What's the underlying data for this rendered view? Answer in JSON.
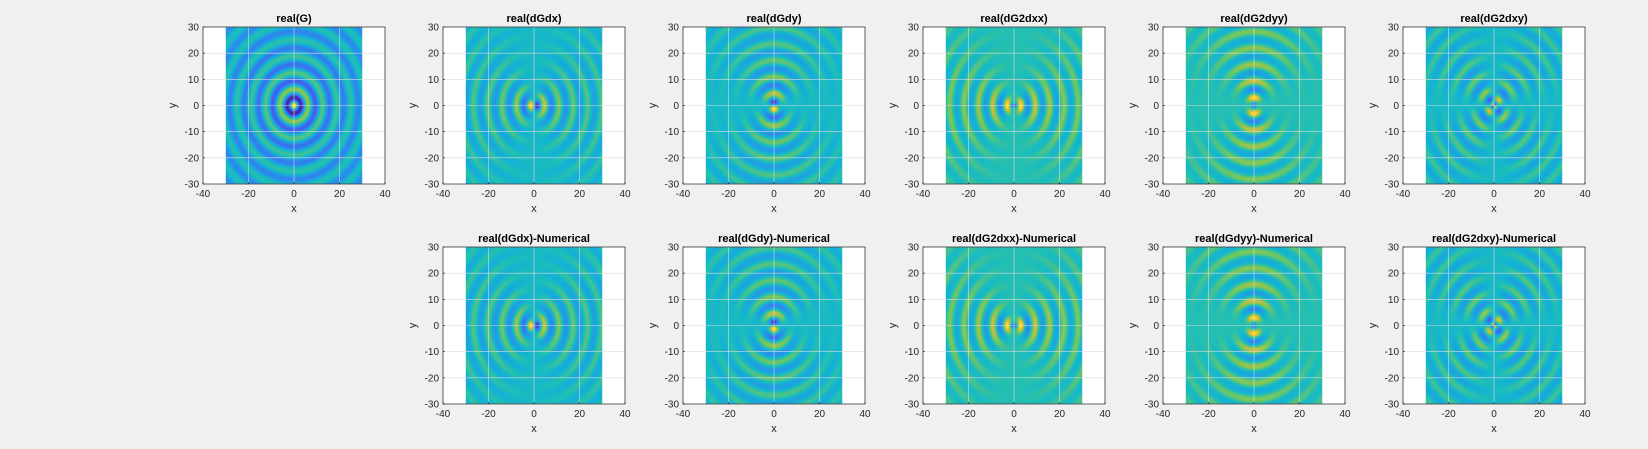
{
  "figure": {
    "background": "#f0f0f0"
  },
  "chart_data": [
    {
      "type": "heatmap",
      "title": "real(G)",
      "field": "G",
      "xlabel": "x",
      "ylabel": "y",
      "xlim": [
        -40,
        40
      ],
      "ylim": [
        -30,
        30
      ],
      "xticks": [
        -40,
        -20,
        0,
        20,
        40
      ],
      "yticks": [
        -30,
        -20,
        -10,
        0,
        10,
        20,
        30
      ],
      "data_extent": {
        "x": [
          -30,
          30
        ],
        "y": [
          -30,
          30
        ]
      },
      "grid": true,
      "colormap": "parula"
    },
    {
      "type": "heatmap",
      "title": "real(dGdx)",
      "field": "dGdx",
      "xlabel": "x",
      "ylabel": "y",
      "xlim": [
        -40,
        40
      ],
      "ylim": [
        -30,
        30
      ],
      "xticks": [
        -40,
        -20,
        0,
        20,
        40
      ],
      "yticks": [
        -30,
        -20,
        -10,
        0,
        10,
        20,
        30
      ],
      "data_extent": {
        "x": [
          -30,
          30
        ],
        "y": [
          -30,
          30
        ]
      },
      "grid": true,
      "colormap": "parula"
    },
    {
      "type": "heatmap",
      "title": "real(dGdy)",
      "field": "dGdy",
      "xlabel": "x",
      "ylabel": "y",
      "xlim": [
        -40,
        40
      ],
      "ylim": [
        -30,
        30
      ],
      "xticks": [
        -40,
        -20,
        0,
        20,
        40
      ],
      "yticks": [
        -30,
        -20,
        -10,
        0,
        10,
        20,
        30
      ],
      "data_extent": {
        "x": [
          -30,
          30
        ],
        "y": [
          -30,
          30
        ]
      },
      "grid": true,
      "colormap": "parula"
    },
    {
      "type": "heatmap",
      "title": "real(dG2dxx)",
      "field": "dG2dxx",
      "xlabel": "x",
      "ylabel": "y",
      "xlim": [
        -40,
        40
      ],
      "ylim": [
        -30,
        30
      ],
      "xticks": [
        -40,
        -20,
        0,
        20,
        40
      ],
      "yticks": [
        -30,
        -20,
        -10,
        0,
        10,
        20,
        30
      ],
      "data_extent": {
        "x": [
          -30,
          30
        ],
        "y": [
          -30,
          30
        ]
      },
      "grid": true,
      "colormap": "parula"
    },
    {
      "type": "heatmap",
      "title": "real(dG2dyy)",
      "field": "dG2dyy",
      "xlabel": "x",
      "ylabel": "y",
      "xlim": [
        -40,
        40
      ],
      "ylim": [
        -30,
        30
      ],
      "xticks": [
        -40,
        -20,
        0,
        20,
        40
      ],
      "yticks": [
        -30,
        -20,
        -10,
        0,
        10,
        20,
        30
      ],
      "data_extent": {
        "x": [
          -30,
          30
        ],
        "y": [
          -30,
          30
        ]
      },
      "grid": true,
      "colormap": "parula"
    },
    {
      "type": "heatmap",
      "title": "real(dG2dxy)",
      "field": "dG2dxy",
      "xlabel": "x",
      "ylabel": "y",
      "xlim": [
        -40,
        40
      ],
      "ylim": [
        -30,
        30
      ],
      "xticks": [
        -40,
        -20,
        0,
        20,
        40
      ],
      "yticks": [
        -30,
        -20,
        -10,
        0,
        10,
        20,
        30
      ],
      "data_extent": {
        "x": [
          -30,
          30
        ],
        "y": [
          -30,
          30
        ]
      },
      "grid": true,
      "colormap": "parula"
    },
    {
      "type": "heatmap",
      "title": "real(dGdx)-Numerical",
      "field": "dGdx",
      "xlabel": "x",
      "ylabel": "y",
      "xlim": [
        -40,
        40
      ],
      "ylim": [
        -30,
        30
      ],
      "xticks": [
        -40,
        -20,
        0,
        20,
        40
      ],
      "yticks": [
        -30,
        -20,
        -10,
        0,
        10,
        20,
        30
      ],
      "data_extent": {
        "x": [
          -30,
          30
        ],
        "y": [
          -30,
          30
        ]
      },
      "grid": true,
      "colormap": "parula"
    },
    {
      "type": "heatmap",
      "title": "real(dGdy)-Numerical",
      "field": "dGdy",
      "xlabel": "x",
      "ylabel": "y",
      "xlim": [
        -40,
        40
      ],
      "ylim": [
        -30,
        30
      ],
      "xticks": [
        -40,
        -20,
        0,
        20,
        40
      ],
      "yticks": [
        -30,
        -20,
        -10,
        0,
        10,
        20,
        30
      ],
      "data_extent": {
        "x": [
          -30,
          30
        ],
        "y": [
          -30,
          30
        ]
      },
      "grid": true,
      "colormap": "parula"
    },
    {
      "type": "heatmap",
      "title": "real(dG2dxx)-Numerical",
      "field": "dG2dxx",
      "xlabel": "x",
      "ylabel": "y",
      "xlim": [
        -40,
        40
      ],
      "ylim": [
        -30,
        30
      ],
      "xticks": [
        -40,
        -20,
        0,
        20,
        40
      ],
      "yticks": [
        -30,
        -20,
        -10,
        0,
        10,
        20,
        30
      ],
      "data_extent": {
        "x": [
          -30,
          30
        ],
        "y": [
          -30,
          30
        ]
      },
      "grid": true,
      "colormap": "parula"
    },
    {
      "type": "heatmap",
      "title": "real(dGdyy)-Numerical",
      "field": "dG2dyy",
      "xlabel": "x",
      "ylabel": "y",
      "xlim": [
        -40,
        40
      ],
      "ylim": [
        -30,
        30
      ],
      "xticks": [
        -40,
        -20,
        0,
        20,
        40
      ],
      "yticks": [
        -30,
        -20,
        -10,
        0,
        10,
        20,
        30
      ],
      "data_extent": {
        "x": [
          -30,
          30
        ],
        "y": [
          -30,
          30
        ]
      },
      "grid": true,
      "colormap": "parula"
    },
    {
      "type": "heatmap",
      "title": "real(dG2dxy)-Numerical",
      "field": "dG2dxy",
      "xlabel": "x",
      "ylabel": "y",
      "xlim": [
        -40,
        40
      ],
      "ylim": [
        -30,
        30
      ],
      "xticks": [
        -40,
        -20,
        0,
        20,
        40
      ],
      "yticks": [
        -30,
        -20,
        -10,
        0,
        10,
        20,
        30
      ],
      "data_extent": {
        "x": [
          -30,
          30
        ],
        "y": [
          -30,
          30
        ]
      },
      "grid": true,
      "colormap": "parula"
    }
  ]
}
